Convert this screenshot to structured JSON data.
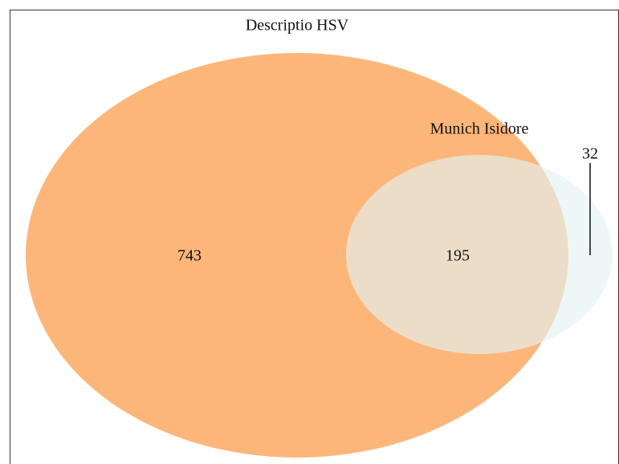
{
  "chart_data": {
    "type": "venn",
    "sets": [
      {
        "name": "Descriptio HSV",
        "color": "#fdb67a"
      },
      {
        "name": "Munich Isidore",
        "color": "#e3f3f2"
      }
    ],
    "regions": [
      {
        "sets": [
          0
        ],
        "value": 743
      },
      {
        "sets": [
          0,
          1
        ],
        "value": 195
      },
      {
        "sets": [
          1
        ],
        "value": 32
      }
    ]
  }
}
